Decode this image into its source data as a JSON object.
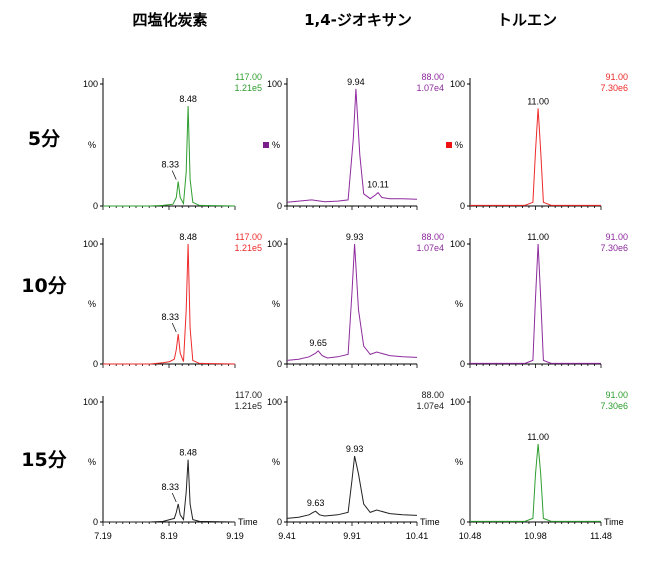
{
  "columns": [
    {
      "label": "四塩化炭素",
      "x_ticks": [
        7.19,
        8.19,
        9.19
      ],
      "xlim": [
        7.19,
        9.19
      ]
    },
    {
      "label": "1,4-ジオキサン",
      "x_ticks": [
        9.41,
        9.91,
        10.41
      ],
      "xlim": [
        9.41,
        10.41
      ]
    },
    {
      "label": "トルエン",
      "x_ticks": [
        10.48,
        10.98,
        11.48
      ],
      "xlim": [
        10.48,
        11.48
      ]
    }
  ],
  "rows": [
    {
      "label": "5分"
    },
    {
      "label": "10分"
    },
    {
      "label": "15分"
    }
  ],
  "axis": {
    "y100": "100",
    "y0": "0",
    "ylabel": "%",
    "xlabel": "Time"
  },
  "chart_data": [
    {
      "type": "line",
      "row": "5分",
      "column": "四塩化炭素",
      "color": "#2e9e2e",
      "mass": "117.00",
      "intensity": "1.21e5",
      "ylim": [
        0,
        100
      ],
      "xlim": [
        7.19,
        9.19
      ],
      "series": [
        {
          "x": [
            7.19,
            7.9,
            8.1,
            8.25,
            8.3,
            8.33,
            8.36,
            8.41,
            8.45,
            8.48,
            8.51,
            8.55,
            8.65,
            9.19
          ],
          "y": [
            0,
            0,
            0.5,
            1.5,
            7,
            20,
            7,
            2,
            28,
            82,
            22,
            3,
            0.5,
            0
          ]
        }
      ],
      "labels": [
        {
          "text": "8.33",
          "x": 8.33,
          "y": 20
        },
        {
          "text": "8.48",
          "x": 8.48,
          "y": 82
        }
      ]
    },
    {
      "type": "line",
      "row": "5分",
      "column": "1,4-ジオキサン",
      "color": "#8e2a9e",
      "marker_color": "#7a1e8a",
      "mass": "88.00",
      "intensity": "1.07e4",
      "ylim": [
        0,
        100
      ],
      "xlim": [
        9.41,
        10.41
      ],
      "series": [
        {
          "x": [
            9.41,
            9.5,
            9.6,
            9.7,
            9.8,
            9.88,
            9.92,
            9.94,
            9.97,
            10.0,
            10.05,
            10.09,
            10.11,
            10.14,
            10.2,
            10.3,
            10.41
          ],
          "y": [
            3,
            4,
            5,
            3.5,
            4,
            5,
            55,
            96,
            42,
            10,
            6,
            9,
            11,
            7,
            6,
            6,
            5.5
          ]
        }
      ],
      "labels": [
        {
          "text": "9.94",
          "x": 9.94,
          "y": 96
        },
        {
          "text": "10.11",
          "x": 10.11,
          "y": 11
        }
      ]
    },
    {
      "type": "line",
      "row": "5分",
      "column": "トルエン",
      "color": "#ee2a2a",
      "marker_color": "#ee1111",
      "mass": "91.00",
      "intensity": "7.30e6",
      "ylim": [
        0,
        100
      ],
      "xlim": [
        10.48,
        11.48
      ],
      "series": [
        {
          "x": [
            10.48,
            10.9,
            10.96,
            10.98,
            11.0,
            11.02,
            11.04,
            11.1,
            11.48
          ],
          "y": [
            0.5,
            0.5,
            3,
            45,
            80,
            45,
            3,
            0.5,
            0.5
          ]
        }
      ],
      "labels": [
        {
          "text": "11.00",
          "x": 11.0,
          "y": 80
        }
      ]
    },
    {
      "type": "line",
      "row": "10分",
      "column": "四塩化炭素",
      "color": "#ee2a2a",
      "mass": "117.00",
      "intensity": "1.21e5",
      "ylim": [
        0,
        100
      ],
      "xlim": [
        7.19,
        9.19
      ],
      "series": [
        {
          "x": [
            7.19,
            7.9,
            8.1,
            8.2,
            8.27,
            8.3,
            8.33,
            8.36,
            8.41,
            8.45,
            8.48,
            8.51,
            8.55,
            8.65,
            9.19
          ],
          "y": [
            0,
            0,
            1,
            2,
            4,
            12,
            25,
            9,
            2,
            45,
            100,
            30,
            3,
            0.5,
            0
          ]
        }
      ],
      "labels": [
        {
          "text": "8.33",
          "x": 8.33,
          "y": 25
        },
        {
          "text": "8.48",
          "x": 8.48,
          "y": 100
        }
      ]
    },
    {
      "type": "line",
      "row": "10分",
      "column": "1,4-ジオキサン",
      "color": "#8e2a9e",
      "mass": "88.00",
      "intensity": "1.07e4",
      "ylim": [
        0,
        100
      ],
      "xlim": [
        9.41,
        10.41
      ],
      "series": [
        {
          "x": [
            9.41,
            9.5,
            9.58,
            9.63,
            9.65,
            9.68,
            9.72,
            9.8,
            9.88,
            9.91,
            9.93,
            9.96,
            10.0,
            10.05,
            10.1,
            10.2,
            10.3,
            10.41
          ],
          "y": [
            3,
            4,
            6,
            9,
            11,
            7,
            5,
            6,
            8,
            60,
            100,
            45,
            15,
            8,
            10,
            7,
            6,
            5.5
          ]
        }
      ],
      "labels": [
        {
          "text": "9.93",
          "x": 9.93,
          "y": 100
        },
        {
          "text": "9.65",
          "x": 9.65,
          "y": 11
        }
      ]
    },
    {
      "type": "line",
      "row": "10分",
      "column": "トルエン",
      "color": "#8e2a9e",
      "mass": "91.00",
      "intensity": "7.30e6",
      "ylim": [
        0,
        100
      ],
      "xlim": [
        10.48,
        11.48
      ],
      "series": [
        {
          "x": [
            10.48,
            10.9,
            10.96,
            10.98,
            11.0,
            11.02,
            11.04,
            11.1,
            11.48
          ],
          "y": [
            0.5,
            0.5,
            3,
            55,
            100,
            55,
            3,
            0.5,
            0.5
          ]
        }
      ],
      "labels": [
        {
          "text": "11.00",
          "x": 11.0,
          "y": 100
        }
      ]
    },
    {
      "type": "line",
      "row": "15分",
      "column": "四塩化炭素",
      "color": "#222222",
      "mass": "117.00",
      "intensity": "1.21e5",
      "ylim": [
        0,
        100
      ],
      "xlim": [
        7.19,
        9.19
      ],
      "series": [
        {
          "x": [
            7.19,
            7.9,
            8.1,
            8.2,
            8.27,
            8.3,
            8.33,
            8.36,
            8.41,
            8.45,
            8.48,
            8.51,
            8.55,
            8.65,
            9.19
          ],
          "y": [
            0,
            0,
            0.5,
            2,
            3,
            8,
            15,
            6,
            2,
            25,
            52,
            15,
            2,
            0.5,
            0
          ]
        }
      ],
      "labels": [
        {
          "text": "8.33",
          "x": 8.33,
          "y": 15
        },
        {
          "text": "8.48",
          "x": 8.48,
          "y": 52
        }
      ]
    },
    {
      "type": "line",
      "row": "15分",
      "column": "1,4-ジオキサン",
      "color": "#222222",
      "mass": "88.00",
      "intensity": "1.07e4",
      "ylim": [
        0,
        100
      ],
      "xlim": [
        9.41,
        10.41
      ],
      "series": [
        {
          "x": [
            9.41,
            9.5,
            9.58,
            9.61,
            9.63,
            9.66,
            9.7,
            9.8,
            9.88,
            9.91,
            9.93,
            9.96,
            10.0,
            10.05,
            10.1,
            10.2,
            10.3,
            10.41
          ],
          "y": [
            3,
            4,
            6,
            8,
            9,
            6,
            5,
            6,
            8,
            35,
            55,
            40,
            15,
            8,
            10,
            7,
            6,
            5.5
          ]
        }
      ],
      "labels": [
        {
          "text": "9.93",
          "x": 9.93,
          "y": 55
        },
        {
          "text": "9.63",
          "x": 9.63,
          "y": 9
        }
      ]
    },
    {
      "type": "line",
      "row": "15分",
      "column": "トルエン",
      "color": "#2e9e2e",
      "mass": "91.00",
      "intensity": "7.30e6",
      "ylim": [
        0,
        100
      ],
      "xlim": [
        10.48,
        11.48
      ],
      "series": [
        {
          "x": [
            10.48,
            10.9,
            10.96,
            10.98,
            11.0,
            11.02,
            11.04,
            11.1,
            11.48
          ],
          "y": [
            0.5,
            0.5,
            3,
            40,
            65,
            40,
            3,
            0.5,
            0.5
          ]
        }
      ],
      "labels": [
        {
          "text": "11.00",
          "x": 11.0,
          "y": 65
        }
      ]
    }
  ]
}
